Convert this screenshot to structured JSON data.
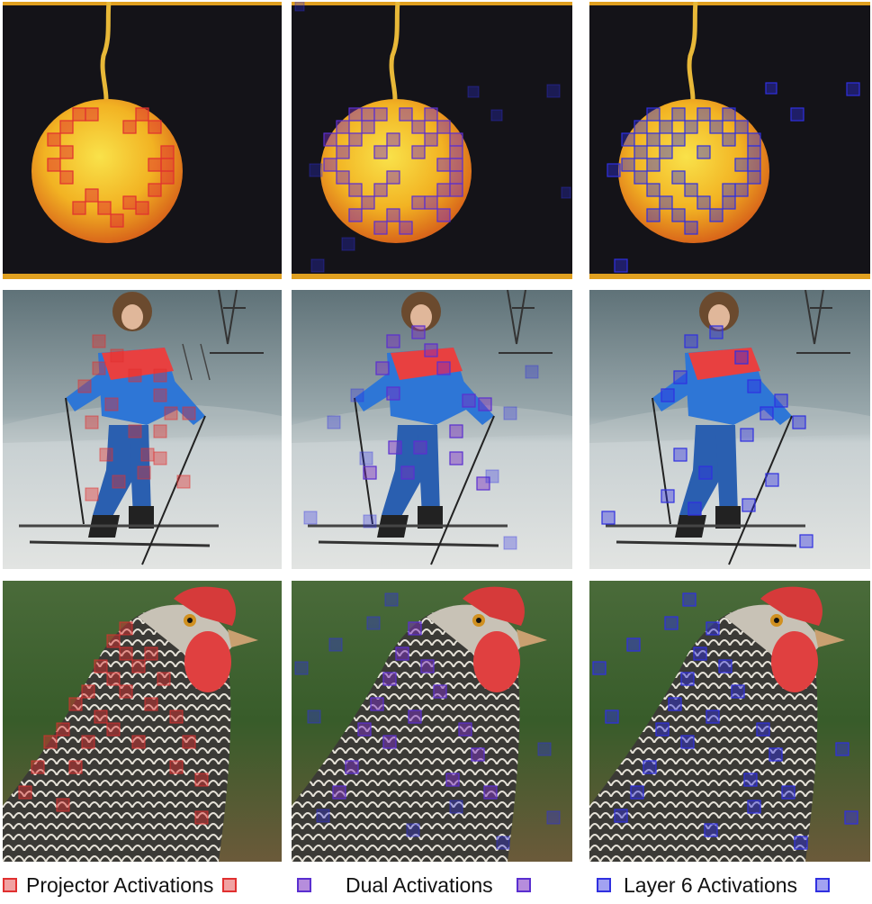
{
  "figure": {
    "rows": [
      "pear",
      "skier",
      "chicken"
    ],
    "columns": [
      "projector",
      "dual",
      "layer6"
    ]
  },
  "colors": {
    "projector": "#e03030",
    "dual": "#7a2fc0",
    "layer6": "#3030e0"
  },
  "legend": {
    "projector_label": "Projector Activations",
    "dual_label": "Dual Activations",
    "layer6_label": "Layer 6 Activations"
  }
}
